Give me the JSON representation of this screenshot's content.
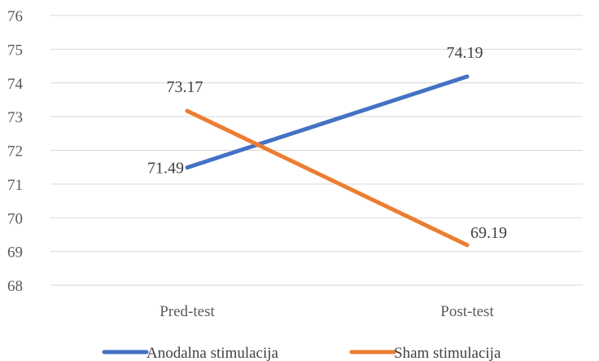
{
  "chart_data": {
    "type": "line",
    "categories": [
      "Pred-test",
      "Post-test"
    ],
    "series": [
      {
        "name": "Anodalna stimulacija",
        "values": [
          71.49,
          74.19
        ],
        "color": "#4472C4",
        "labels": [
          "71.49",
          "74.19"
        ],
        "label_side": [
          "left",
          "above"
        ]
      },
      {
        "name": "Sham stimulacija",
        "values": [
          73.17,
          69.19
        ],
        "color": "#ED7D31",
        "labels": [
          "73.17",
          "69.19"
        ],
        "label_side": [
          "above",
          "right"
        ]
      }
    ],
    "ylim": [
      68,
      76
    ],
    "yticks": [
      68,
      69,
      70,
      71,
      72,
      73,
      74,
      75,
      76
    ],
    "ytick_labels": [
      "68",
      "69",
      "70",
      "71",
      "72",
      "73",
      "74",
      "75",
      "76"
    ],
    "grid": true,
    "legend_position": "bottom",
    "title": "",
    "xlabel": "",
    "ylabel": ""
  }
}
